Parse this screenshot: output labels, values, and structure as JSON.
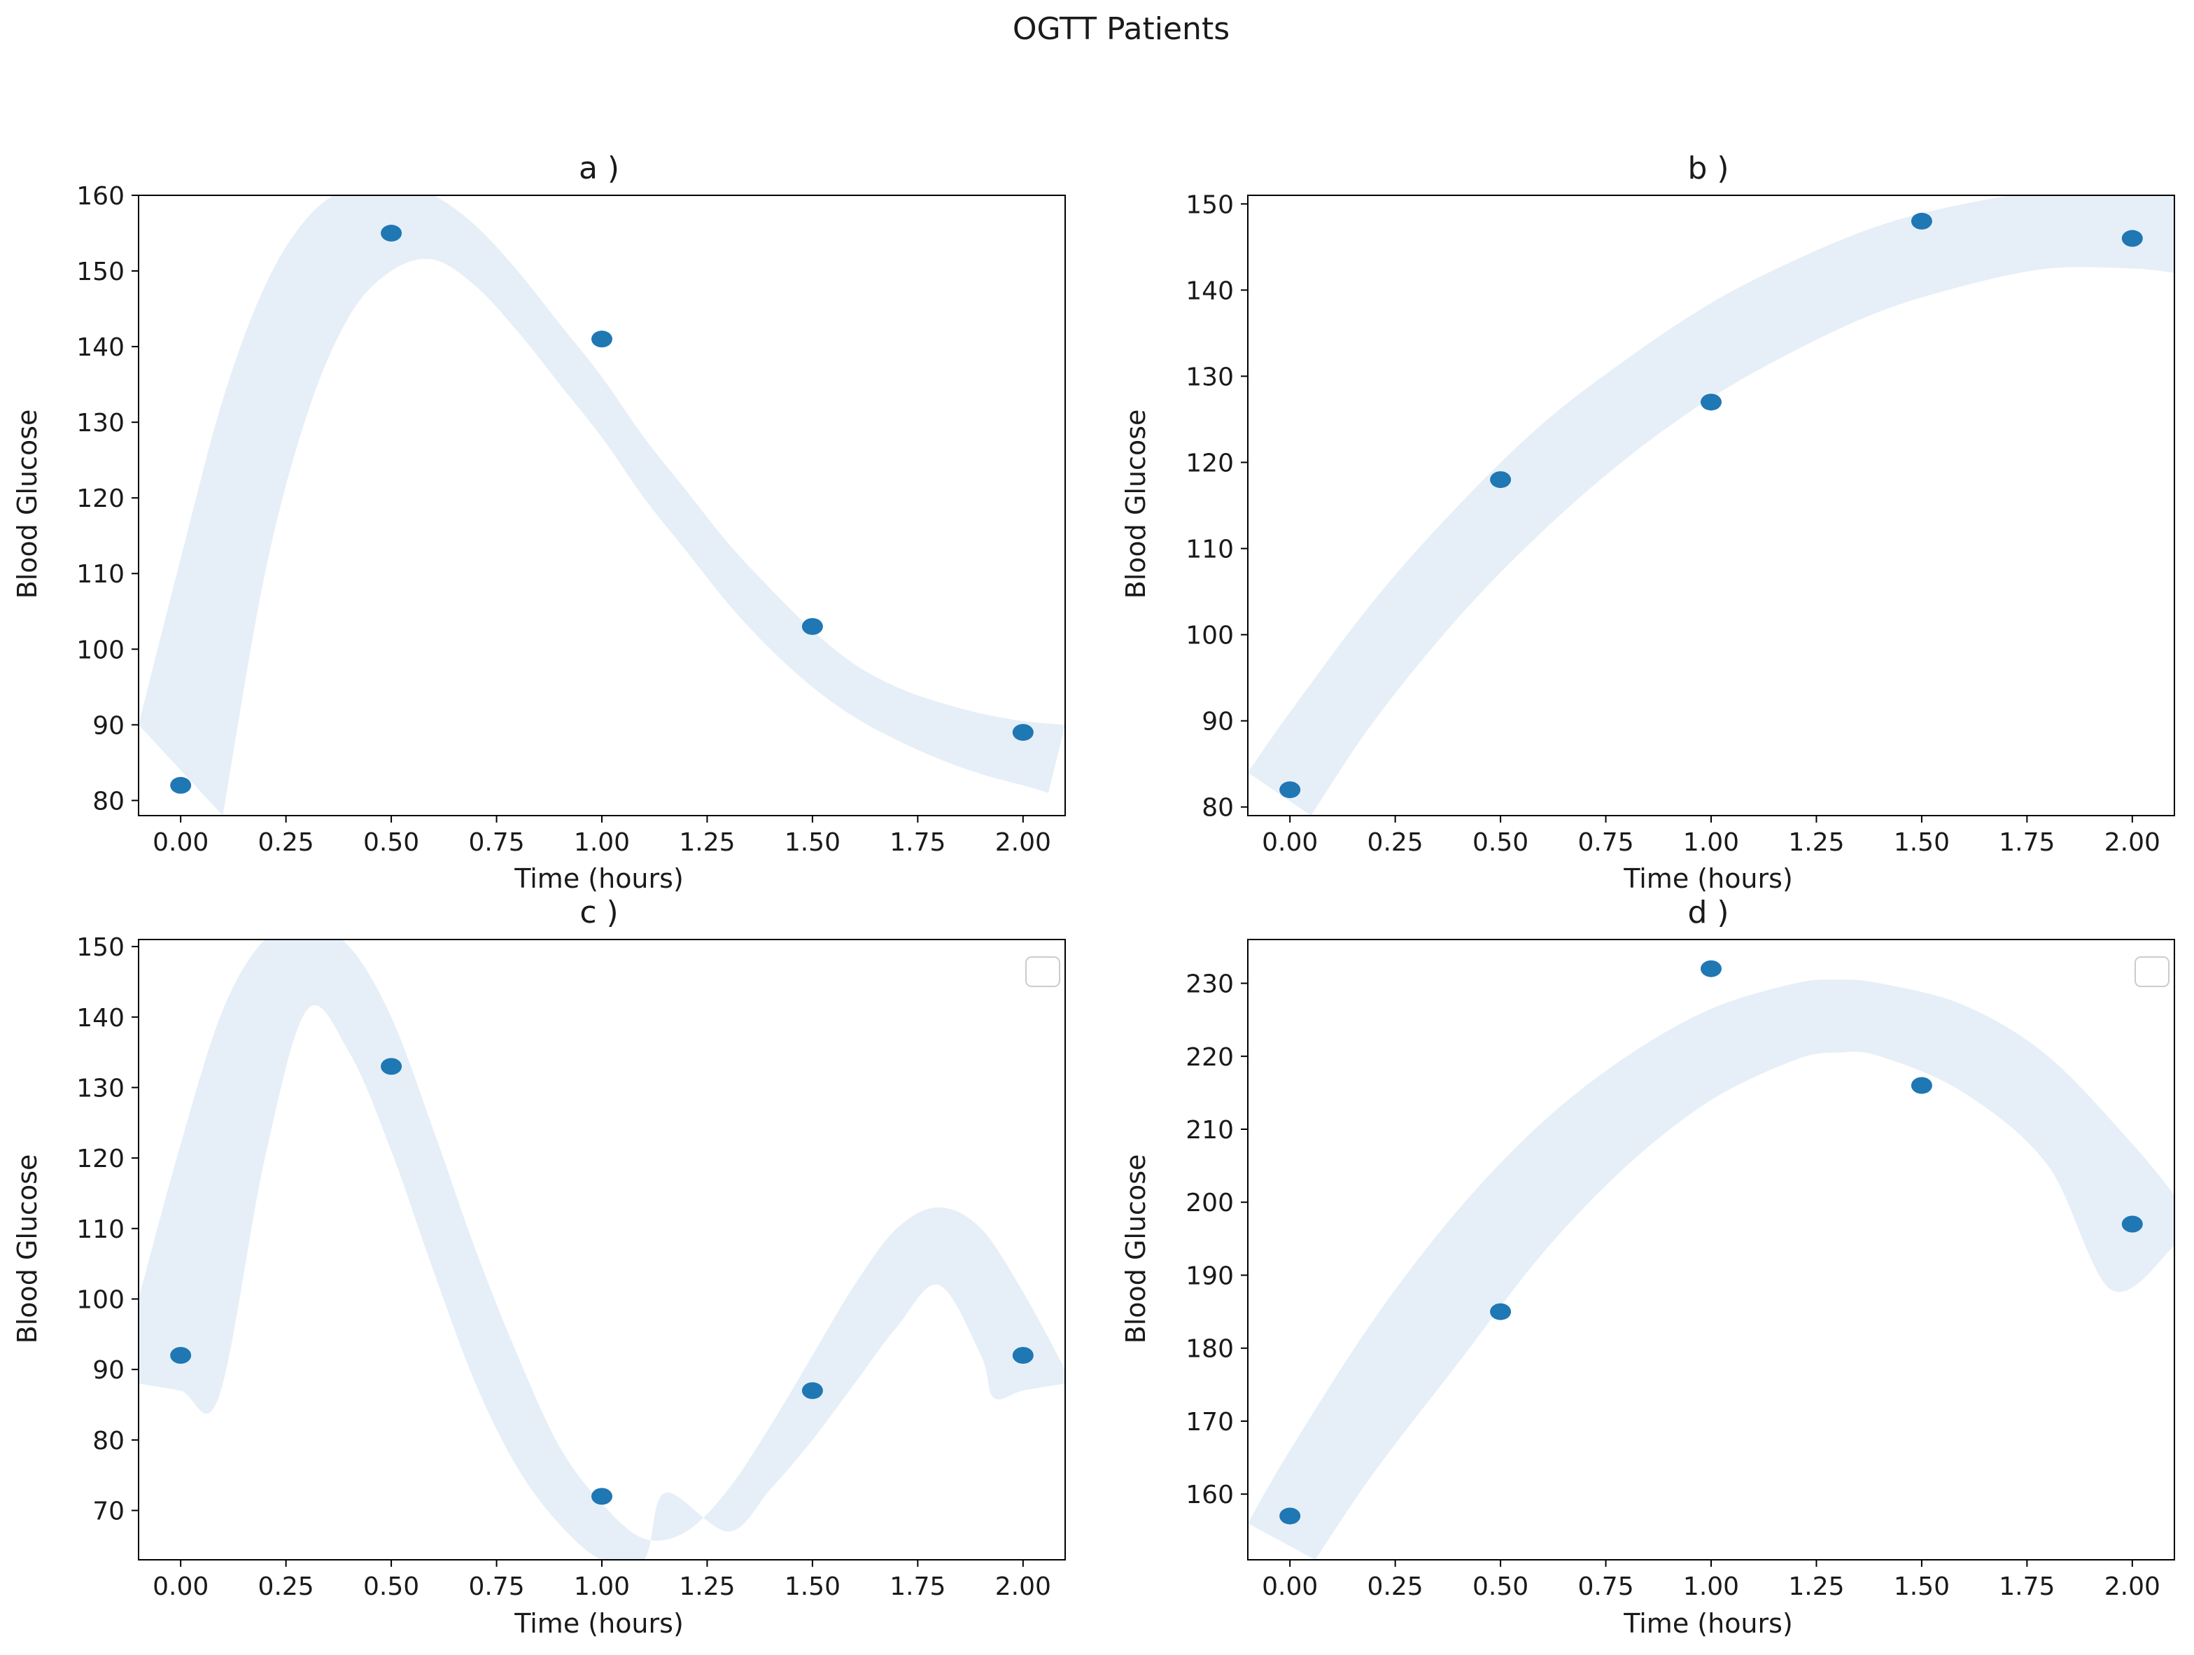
{
  "suptitle": "OGTT Patients",
  "colors": {
    "point": "#1f77b4",
    "band": "#dce8f4",
    "axis": "#000000"
  },
  "chart_data": [
    {
      "type": "scatter",
      "title": "a )",
      "xlabel": "Time (hours)",
      "ylabel": "Blood Glucose",
      "x": [
        0.0,
        0.5,
        1.0,
        1.5,
        2.0
      ],
      "y": [
        82,
        155,
        141,
        103,
        89
      ],
      "xlim": [
        -0.1,
        2.1
      ],
      "ylim": [
        78,
        160
      ],
      "xticks": [
        "0.00",
        "0.25",
        "0.50",
        "0.75",
        "1.00",
        "1.25",
        "1.50",
        "1.75",
        "2.00"
      ],
      "yticks": [
        "80",
        "90",
        "100",
        "110",
        "120",
        "130",
        "140",
        "150",
        "160"
      ],
      "band": {
        "upper": [
          [
            -0.1,
            90
          ],
          [
            0.0,
            112
          ],
          [
            0.1,
            133
          ],
          [
            0.2,
            148
          ],
          [
            0.3,
            157
          ],
          [
            0.4,
            161
          ],
          [
            0.5,
            161.5
          ],
          [
            0.6,
            160
          ],
          [
            0.7,
            156
          ],
          [
            0.8,
            150
          ],
          [
            0.9,
            143
          ],
          [
            1.0,
            136
          ],
          [
            1.1,
            128
          ],
          [
            1.2,
            121
          ],
          [
            1.3,
            114
          ],
          [
            1.4,
            108
          ],
          [
            1.5,
            102.5
          ],
          [
            1.6,
            98
          ],
          [
            1.7,
            95
          ],
          [
            1.8,
            93
          ],
          [
            1.9,
            91.5
          ],
          [
            2.0,
            90.5
          ],
          [
            2.1,
            90
          ]
        ],
        "lower": [
          [
            0.1,
            78
          ],
          [
            0.2,
            110
          ],
          [
            0.3,
            131
          ],
          [
            0.4,
            144
          ],
          [
            0.5,
            150
          ],
          [
            0.6,
            151.5
          ],
          [
            0.7,
            148
          ],
          [
            0.8,
            142
          ],
          [
            0.9,
            135
          ],
          [
            1.0,
            128
          ],
          [
            1.1,
            120
          ],
          [
            1.2,
            113
          ],
          [
            1.3,
            106
          ],
          [
            1.4,
            100
          ],
          [
            1.5,
            95
          ],
          [
            1.6,
            91
          ],
          [
            1.7,
            88
          ],
          [
            1.8,
            85.5
          ],
          [
            1.9,
            83.5
          ],
          [
            2.0,
            82
          ],
          [
            2.06,
            81
          ]
        ]
      },
      "legend": null
    },
    {
      "type": "scatter",
      "title": "b )",
      "xlabel": "Time (hours)",
      "ylabel": "Blood Glucose",
      "x": [
        0.0,
        0.5,
        1.0,
        1.5,
        2.0
      ],
      "y": [
        82,
        118,
        127,
        148,
        146
      ],
      "xlim": [
        -0.1,
        2.1
      ],
      "ylim": [
        79,
        151
      ],
      "xticks": [
        "0.00",
        "0.25",
        "0.50",
        "0.75",
        "1.00",
        "1.25",
        "1.50",
        "1.75",
        "2.00"
      ],
      "yticks": [
        "80",
        "90",
        "100",
        "110",
        "120",
        "130",
        "140",
        "150"
      ],
      "band": {
        "upper": [
          [
            -0.1,
            84
          ],
          [
            0.0,
            91
          ],
          [
            0.2,
            104
          ],
          [
            0.4,
            115
          ],
          [
            0.6,
            124.5
          ],
          [
            0.8,
            132
          ],
          [
            1.0,
            138.5
          ],
          [
            1.2,
            143.5
          ],
          [
            1.4,
            147.5
          ],
          [
            1.6,
            150
          ],
          [
            1.8,
            151.5
          ],
          [
            2.0,
            151.5
          ],
          [
            2.1,
            151
          ]
        ],
        "lower": [
          [
            0.05,
            79
          ],
          [
            0.2,
            90
          ],
          [
            0.4,
            102
          ],
          [
            0.6,
            112
          ],
          [
            0.8,
            120.5
          ],
          [
            1.0,
            127.5
          ],
          [
            1.2,
            133
          ],
          [
            1.4,
            137.5
          ],
          [
            1.6,
            140.5
          ],
          [
            1.8,
            142.5
          ],
          [
            2.0,
            142.5
          ],
          [
            2.1,
            142
          ]
        ]
      },
      "legend": null
    },
    {
      "type": "scatter",
      "title": "c )",
      "xlabel": "Time (hours)",
      "ylabel": "Blood Glucose",
      "x": [
        0.0,
        0.5,
        1.0,
        1.5,
        2.0
      ],
      "y": [
        92,
        133,
        72,
        87,
        92
      ],
      "xlim": [
        -0.1,
        2.1
      ],
      "ylim": [
        63,
        151
      ],
      "xticks": [
        "0.00",
        "0.25",
        "0.50",
        "0.75",
        "1.00",
        "1.25",
        "1.50",
        "1.75",
        "2.00"
      ],
      "yticks": [
        "70",
        "80",
        "90",
        "100",
        "110",
        "120",
        "130",
        "140",
        "150"
      ],
      "band": {
        "upper": [
          [
            -0.1,
            100
          ],
          [
            0.0,
            122
          ],
          [
            0.1,
            141
          ],
          [
            0.2,
            151
          ],
          [
            0.3,
            153
          ],
          [
            0.4,
            150
          ],
          [
            0.5,
            140
          ],
          [
            0.6,
            124
          ],
          [
            0.7,
            107
          ],
          [
            0.8,
            92
          ],
          [
            0.9,
            79
          ],
          [
            1.0,
            71
          ],
          [
            1.1,
            66
          ],
          [
            1.2,
            67
          ],
          [
            1.3,
            73
          ],
          [
            1.4,
            82
          ],
          [
            1.5,
            92
          ],
          [
            1.6,
            102
          ],
          [
            1.7,
            110
          ],
          [
            1.8,
            113
          ],
          [
            1.9,
            110
          ],
          [
            2.0,
            101
          ],
          [
            2.1,
            90
          ]
        ],
        "lower": [
          [
            -0.1,
            88
          ],
          [
            0.0,
            87
          ],
          [
            0.09,
            86
          ],
          [
            0.2,
            120
          ],
          [
            0.3,
            141
          ],
          [
            0.4,
            135
          ],
          [
            0.5,
            121
          ],
          [
            0.6,
            104
          ],
          [
            0.7,
            88
          ],
          [
            0.8,
            76
          ],
          [
            0.9,
            68
          ],
          [
            1.0,
            63
          ],
          [
            1.1,
            63
          ],
          [
            1.15,
            72.5
          ],
          [
            1.3,
            67
          ],
          [
            1.4,
            73
          ],
          [
            1.5,
            80
          ],
          [
            1.6,
            88
          ],
          [
            1.7,
            96
          ],
          [
            1.8,
            102
          ],
          [
            1.9,
            92
          ],
          [
            1.93,
            86
          ],
          [
            2.0,
            87
          ],
          [
            2.1,
            88
          ]
        ]
      },
      "legend": {
        "placement": "top-right",
        "entries": []
      }
    },
    {
      "type": "scatter",
      "title": "d )",
      "xlabel": "Time (hours)",
      "ylabel": "Blood Glucose",
      "x": [
        0.0,
        0.5,
        1.0,
        1.5,
        2.0
      ],
      "y": [
        157,
        185,
        232,
        216,
        197
      ],
      "xlim": [
        -0.1,
        2.1
      ],
      "ylim": [
        151,
        236
      ],
      "xticks": [
        "0.00",
        "0.25",
        "0.50",
        "0.75",
        "1.00",
        "1.25",
        "1.50",
        "1.75",
        "2.00"
      ],
      "yticks": [
        "160",
        "170",
        "180",
        "190",
        "200",
        "210",
        "220",
        "230"
      ],
      "band": {
        "upper": [
          [
            -0.1,
            156
          ],
          [
            0.0,
            166
          ],
          [
            0.2,
            184
          ],
          [
            0.4,
            199
          ],
          [
            0.6,
            211
          ],
          [
            0.8,
            220
          ],
          [
            1.0,
            226.5
          ],
          [
            1.2,
            230
          ],
          [
            1.3,
            230.5
          ],
          [
            1.4,
            230
          ],
          [
            1.6,
            227
          ],
          [
            1.8,
            220
          ],
          [
            2.0,
            208
          ],
          [
            2.1,
            201
          ]
        ],
        "lower": [
          [
            0.06,
            151
          ],
          [
            0.2,
            163
          ],
          [
            0.4,
            178
          ],
          [
            0.6,
            193
          ],
          [
            0.8,
            205
          ],
          [
            1.0,
            214
          ],
          [
            1.2,
            219.5
          ],
          [
            1.3,
            220.5
          ],
          [
            1.4,
            220
          ],
          [
            1.6,
            215
          ],
          [
            1.8,
            205
          ],
          [
            1.95,
            188
          ],
          [
            2.1,
            194
          ]
        ]
      },
      "legend": {
        "placement": "top-right",
        "entries": []
      }
    }
  ]
}
